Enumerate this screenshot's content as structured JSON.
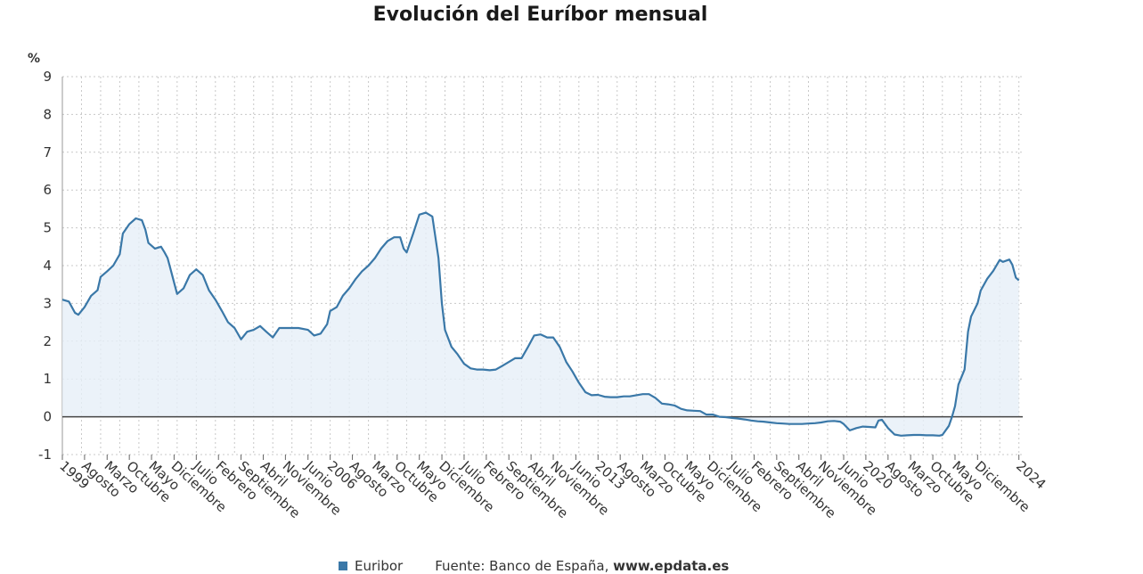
{
  "title": "Evolución del Euríbor mensual",
  "y_unit": "%",
  "legend_label": "Euribor",
  "source": {
    "label": "Fuente: Banco de España,",
    "link": "www.epdata.es"
  },
  "colors": {
    "line": "#3a78a8",
    "fill": "#e6eff7",
    "grid": "#c8c8c8",
    "zero": "#444444"
  },
  "chart_data": {
    "type": "area",
    "title": "Evolución del Euríbor mensual",
    "ylabel": "%",
    "xlabel": "",
    "ylim": [
      -1,
      9
    ],
    "yticks": [
      -1,
      0,
      1,
      2,
      3,
      4,
      5,
      6,
      7,
      8,
      9
    ],
    "grid": true,
    "legend_position": "bottom",
    "x_range": [
      1999.0,
      2024.1
    ],
    "x_tick_labels": [
      {
        "x": 1999.0,
        "label": "1999"
      },
      {
        "x": 1999.58,
        "label": "Agosto"
      },
      {
        "x": 2000.17,
        "label": "Marzo"
      },
      {
        "x": 2000.75,
        "label": "Octubre"
      },
      {
        "x": 2001.33,
        "label": "Mayo"
      },
      {
        "x": 2001.92,
        "label": "Diciembre"
      },
      {
        "x": 2002.5,
        "label": "Julio"
      },
      {
        "x": 2003.08,
        "label": "Febrero"
      },
      {
        "x": 2003.67,
        "label": "Septiembre"
      },
      {
        "x": 2004.25,
        "label": "Abril"
      },
      {
        "x": 2004.83,
        "label": "Noviembre"
      },
      {
        "x": 2005.42,
        "label": "Junio"
      },
      {
        "x": 2006.0,
        "label": "2006"
      },
      {
        "x": 2006.58,
        "label": "Agosto"
      },
      {
        "x": 2007.17,
        "label": "Marzo"
      },
      {
        "x": 2007.75,
        "label": "Octubre"
      },
      {
        "x": 2008.33,
        "label": "Mayo"
      },
      {
        "x": 2008.92,
        "label": "Diciembre"
      },
      {
        "x": 2009.5,
        "label": "Julio"
      },
      {
        "x": 2010.08,
        "label": "Febrero"
      },
      {
        "x": 2010.67,
        "label": "Septiembre"
      },
      {
        "x": 2011.25,
        "label": "Abril"
      },
      {
        "x": 2011.83,
        "label": "Noviembre"
      },
      {
        "x": 2012.42,
        "label": "Junio"
      },
      {
        "x": 2013.0,
        "label": "2013"
      },
      {
        "x": 2013.58,
        "label": "Agosto"
      },
      {
        "x": 2014.17,
        "label": "Marzo"
      },
      {
        "x": 2014.75,
        "label": "Octubre"
      },
      {
        "x": 2015.33,
        "label": "Mayo"
      },
      {
        "x": 2015.92,
        "label": "Diciembre"
      },
      {
        "x": 2016.5,
        "label": "Julio"
      },
      {
        "x": 2017.08,
        "label": "Febrero"
      },
      {
        "x": 2017.67,
        "label": "Septiembre"
      },
      {
        "x": 2018.25,
        "label": "Abril"
      },
      {
        "x": 2018.83,
        "label": "Noviembre"
      },
      {
        "x": 2019.42,
        "label": "Junio"
      },
      {
        "x": 2020.0,
        "label": "2020"
      },
      {
        "x": 2020.58,
        "label": "Agosto"
      },
      {
        "x": 2021.17,
        "label": "Marzo"
      },
      {
        "x": 2021.75,
        "label": "Octubre"
      },
      {
        "x": 2022.33,
        "label": "Mayo"
      },
      {
        "x": 2022.92,
        "label": "Diciembre"
      },
      {
        "x": 2024.0,
        "label": "2024"
      }
    ],
    "series": [
      {
        "name": "Euribor",
        "points": [
          [
            1999.0,
            3.1
          ],
          [
            1999.17,
            3.05
          ],
          [
            1999.33,
            2.75
          ],
          [
            1999.42,
            2.7
          ],
          [
            1999.58,
            2.9
          ],
          [
            1999.75,
            3.2
          ],
          [
            1999.92,
            3.35
          ],
          [
            2000.0,
            3.7
          ],
          [
            2000.17,
            3.85
          ],
          [
            2000.33,
            4.0
          ],
          [
            2000.5,
            4.3
          ],
          [
            2000.58,
            4.85
          ],
          [
            2000.75,
            5.1
          ],
          [
            2000.92,
            5.25
          ],
          [
            2001.08,
            5.2
          ],
          [
            2001.17,
            4.95
          ],
          [
            2001.25,
            4.6
          ],
          [
            2001.42,
            4.45
          ],
          [
            2001.58,
            4.5
          ],
          [
            2001.67,
            4.35
          ],
          [
            2001.75,
            4.2
          ],
          [
            2001.83,
            3.9
          ],
          [
            2002.0,
            3.25
          ],
          [
            2002.17,
            3.4
          ],
          [
            2002.33,
            3.75
          ],
          [
            2002.5,
            3.9
          ],
          [
            2002.67,
            3.75
          ],
          [
            2002.83,
            3.35
          ],
          [
            2003.0,
            3.1
          ],
          [
            2003.17,
            2.8
          ],
          [
            2003.33,
            2.5
          ],
          [
            2003.5,
            2.35
          ],
          [
            2003.67,
            2.05
          ],
          [
            2003.83,
            2.25
          ],
          [
            2004.0,
            2.3
          ],
          [
            2004.17,
            2.4
          ],
          [
            2004.33,
            2.25
          ],
          [
            2004.5,
            2.1
          ],
          [
            2004.67,
            2.35
          ],
          [
            2004.83,
            2.35
          ],
          [
            2005.0,
            2.35
          ],
          [
            2005.17,
            2.35
          ],
          [
            2005.42,
            2.3
          ],
          [
            2005.58,
            2.15
          ],
          [
            2005.75,
            2.2
          ],
          [
            2005.92,
            2.45
          ],
          [
            2006.0,
            2.8
          ],
          [
            2006.17,
            2.9
          ],
          [
            2006.33,
            3.2
          ],
          [
            2006.5,
            3.4
          ],
          [
            2006.67,
            3.65
          ],
          [
            2006.83,
            3.85
          ],
          [
            2007.0,
            4.0
          ],
          [
            2007.17,
            4.2
          ],
          [
            2007.33,
            4.45
          ],
          [
            2007.5,
            4.65
          ],
          [
            2007.67,
            4.75
          ],
          [
            2007.83,
            4.75
          ],
          [
            2007.92,
            4.45
          ],
          [
            2008.0,
            4.35
          ],
          [
            2008.17,
            4.85
          ],
          [
            2008.33,
            5.35
          ],
          [
            2008.5,
            5.4
          ],
          [
            2008.67,
            5.3
          ],
          [
            2008.83,
            4.2
          ],
          [
            2008.92,
            3.0
          ],
          [
            2009.0,
            2.3
          ],
          [
            2009.17,
            1.85
          ],
          [
            2009.33,
            1.65
          ],
          [
            2009.5,
            1.4
          ],
          [
            2009.67,
            1.28
          ],
          [
            2009.83,
            1.25
          ],
          [
            2010.0,
            1.25
          ],
          [
            2010.17,
            1.23
          ],
          [
            2010.33,
            1.25
          ],
          [
            2010.5,
            1.35
          ],
          [
            2010.67,
            1.45
          ],
          [
            2010.83,
            1.55
          ],
          [
            2011.0,
            1.55
          ],
          [
            2011.17,
            1.85
          ],
          [
            2011.33,
            2.15
          ],
          [
            2011.5,
            2.18
          ],
          [
            2011.67,
            2.1
          ],
          [
            2011.83,
            2.1
          ],
          [
            2012.0,
            1.85
          ],
          [
            2012.17,
            1.45
          ],
          [
            2012.33,
            1.2
          ],
          [
            2012.5,
            0.9
          ],
          [
            2012.67,
            0.65
          ],
          [
            2012.83,
            0.57
          ],
          [
            2013.0,
            0.58
          ],
          [
            2013.17,
            0.53
          ],
          [
            2013.33,
            0.52
          ],
          [
            2013.5,
            0.52
          ],
          [
            2013.67,
            0.54
          ],
          [
            2013.83,
            0.54
          ],
          [
            2014.0,
            0.57
          ],
          [
            2014.17,
            0.6
          ],
          [
            2014.33,
            0.6
          ],
          [
            2014.5,
            0.5
          ],
          [
            2014.67,
            0.35
          ],
          [
            2014.83,
            0.33
          ],
          [
            2015.0,
            0.3
          ],
          [
            2015.17,
            0.21
          ],
          [
            2015.33,
            0.17
          ],
          [
            2015.5,
            0.16
          ],
          [
            2015.67,
            0.15
          ],
          [
            2015.83,
            0.06
          ],
          [
            2016.0,
            0.06
          ],
          [
            2016.17,
            0.0
          ],
          [
            2016.33,
            -0.01
          ],
          [
            2016.5,
            -0.03
          ],
          [
            2016.67,
            -0.05
          ],
          [
            2016.83,
            -0.07
          ],
          [
            2017.0,
            -0.1
          ],
          [
            2017.17,
            -0.12
          ],
          [
            2017.33,
            -0.13
          ],
          [
            2017.5,
            -0.15
          ],
          [
            2017.67,
            -0.17
          ],
          [
            2017.83,
            -0.18
          ],
          [
            2018.0,
            -0.19
          ],
          [
            2018.17,
            -0.19
          ],
          [
            2018.33,
            -0.19
          ],
          [
            2018.5,
            -0.18
          ],
          [
            2018.67,
            -0.17
          ],
          [
            2018.83,
            -0.15
          ],
          [
            2019.0,
            -0.12
          ],
          [
            2019.17,
            -0.11
          ],
          [
            2019.33,
            -0.13
          ],
          [
            2019.42,
            -0.19
          ],
          [
            2019.58,
            -0.36
          ],
          [
            2019.75,
            -0.3
          ],
          [
            2019.92,
            -0.26
          ],
          [
            2020.08,
            -0.27
          ],
          [
            2020.25,
            -0.28
          ],
          [
            2020.33,
            -0.1
          ],
          [
            2020.42,
            -0.08
          ],
          [
            2020.58,
            -0.3
          ],
          [
            2020.75,
            -0.47
          ],
          [
            2020.92,
            -0.5
          ],
          [
            2021.08,
            -0.49
          ],
          [
            2021.25,
            -0.48
          ],
          [
            2021.42,
            -0.48
          ],
          [
            2021.58,
            -0.49
          ],
          [
            2021.75,
            -0.49
          ],
          [
            2021.92,
            -0.5
          ],
          [
            2022.0,
            -0.48
          ],
          [
            2022.17,
            -0.24
          ],
          [
            2022.25,
            -0.01
          ],
          [
            2022.33,
            0.28
          ],
          [
            2022.42,
            0.85
          ],
          [
            2022.58,
            1.25
          ],
          [
            2022.67,
            2.25
          ],
          [
            2022.75,
            2.65
          ],
          [
            2022.92,
            3.0
          ],
          [
            2023.0,
            3.34
          ],
          [
            2023.17,
            3.65
          ],
          [
            2023.33,
            3.86
          ],
          [
            2023.5,
            4.15
          ],
          [
            2023.58,
            4.1
          ],
          [
            2023.75,
            4.16
          ],
          [
            2023.83,
            4.02
          ],
          [
            2023.92,
            3.68
          ],
          [
            2024.0,
            3.61
          ]
        ]
      }
    ]
  }
}
